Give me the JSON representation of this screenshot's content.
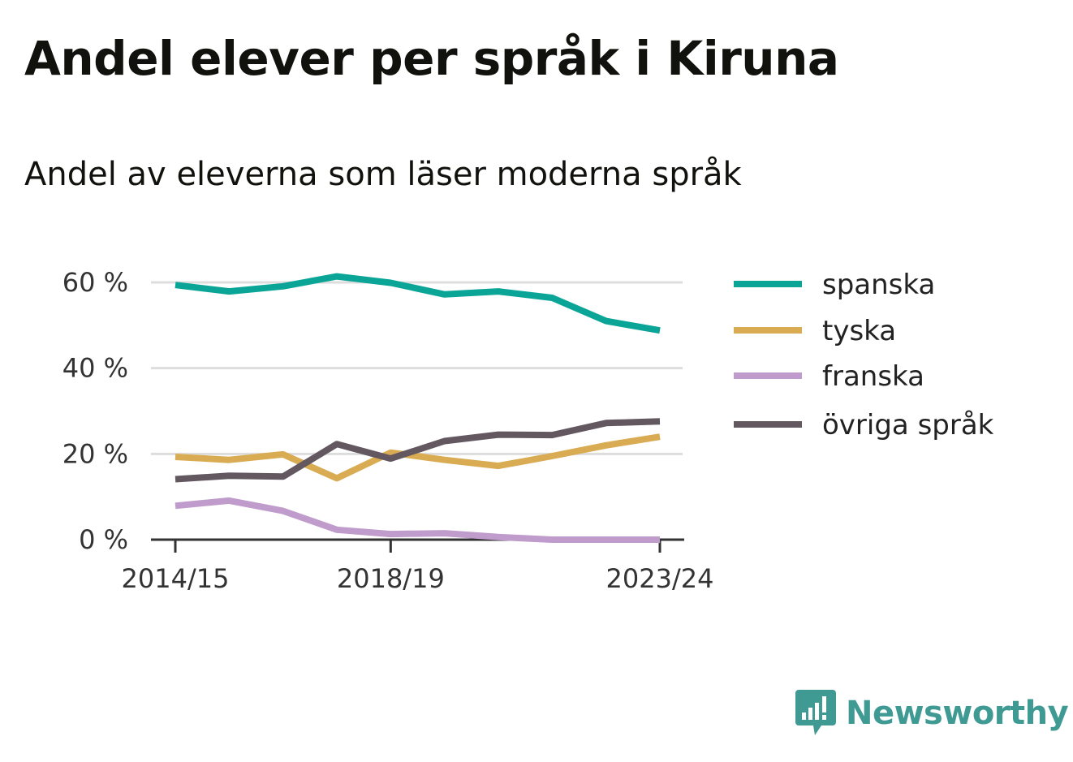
{
  "chart_data": {
    "type": "line",
    "title": "Andel elever per språk i Kiruna",
    "subtitle": "Andel av eleverna som läser moderna språk",
    "x": [
      "2014/15",
      "2015/16",
      "2016/17",
      "2017/18",
      "2018/19",
      "2019/20",
      "2020/21",
      "2021/22",
      "2022/23",
      "2023/24"
    ],
    "x_tick_labels": [
      "2014/15",
      "2018/19",
      "2023/24"
    ],
    "x_tick_positions": [
      "2014/15",
      "2018/19",
      "2023/24"
    ],
    "y_tick_values": [
      0,
      20,
      40,
      60
    ],
    "y_tick_labels": [
      "0 %",
      "20 %",
      "40 %",
      "60 %"
    ],
    "ylim": [
      0,
      65
    ],
    "grid": true,
    "legend_position": "right",
    "series": [
      {
        "name": "spanska",
        "color": "#0aa597",
        "values": [
          59.4,
          57.9,
          59.1,
          61.4,
          59.9,
          57.2,
          57.9,
          56.4,
          51.0,
          48.8
        ]
      },
      {
        "name": "tyska",
        "color": "#d9ac53",
        "values": [
          19.3,
          18.6,
          19.9,
          14.3,
          20.3,
          18.6,
          17.2,
          19.5,
          22.0,
          24.0
        ]
      },
      {
        "name": "franska",
        "color": "#c09ccc",
        "values": [
          7.9,
          9.1,
          6.7,
          2.3,
          1.3,
          1.5,
          0.6,
          0,
          0,
          0
        ]
      },
      {
        "name": "övriga språk",
        "color": "#635860",
        "values": [
          14.1,
          14.9,
          14.7,
          22.3,
          18.9,
          23.0,
          24.5,
          24.4,
          27.2,
          27.6
        ]
      }
    ]
  },
  "brand": {
    "name": "Newsworthy",
    "icon": "newsworthy-logo-icon",
    "color": "#3f9a93"
  }
}
